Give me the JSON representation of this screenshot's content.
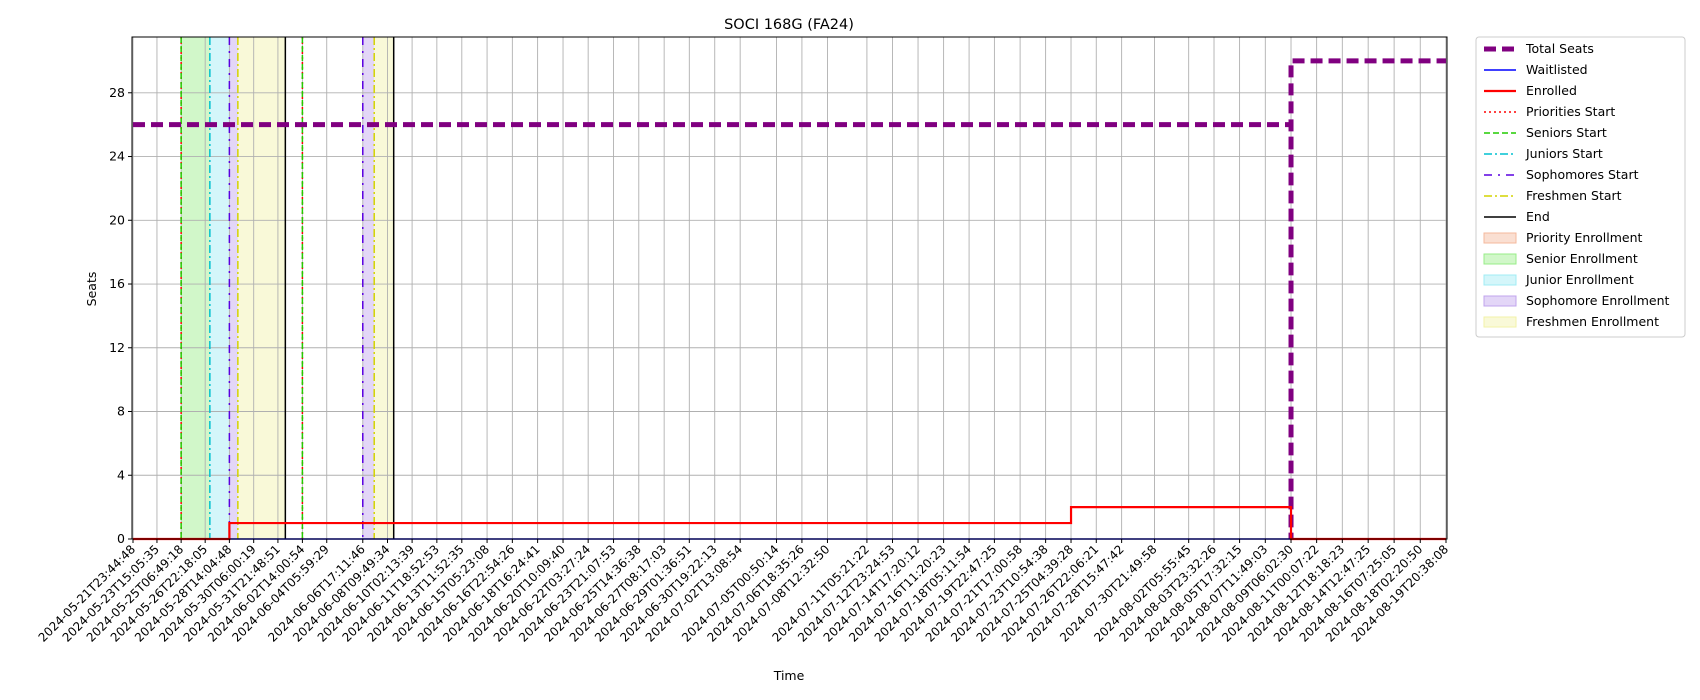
{
  "chart_data": {
    "type": "line",
    "title": "SOCI 168G (FA24)",
    "xlabel": "Time",
    "ylabel": "Seats",
    "ylim": [
      0,
      31.5
    ],
    "yticks": [
      0,
      4,
      8,
      12,
      16,
      20,
      24,
      28
    ],
    "grid": true,
    "legend_placement": "outside-right",
    "xticks": [
      "2024-05-21T23:44:48",
      "2024-05-23T15:05:35",
      "2024-05-25T06:49:18",
      "2024-05-26T22:18:05",
      "2024-05-28T14:04:48",
      "2024-05-30T06:00:19",
      "2024-05-31T21:48:51",
      "2024-06-02T14:00:54",
      "2024-06-04T05:59:29",
      "2024-06-06T17:11:46",
      "2024-06-08T09:49:34",
      "2024-06-10T02:13:39",
      "2024-06-11T18:52:53",
      "2024-06-13T11:52:35",
      "2024-06-15T05:23:08",
      "2024-06-16T22:54:26",
      "2024-06-18T16:24:41",
      "2024-06-20T10:09:40",
      "2024-06-22T03:27:24",
      "2024-06-23T21:07:53",
      "2024-06-25T14:36:38",
      "2024-06-27T08:17:03",
      "2024-06-29T01:36:51",
      "2024-06-30T19:22:13",
      "2024-07-02T13:08:54",
      "2024-07-05T00:50:14",
      "2024-07-06T18:35:26",
      "2024-07-08T12:32:50",
      "2024-07-11T05:21:22",
      "2024-07-12T23:24:53",
      "2024-07-14T17:20:12",
      "2024-07-16T11:20:23",
      "2024-07-18T05:11:54",
      "2024-07-19T22:47:25",
      "2024-07-21T17:00:58",
      "2024-07-23T10:54:38",
      "2024-07-25T04:39:28",
      "2024-07-26T22:06:21",
      "2024-07-28T15:47:42",
      "2024-07-30T21:49:58",
      "2024-08-02T05:55:45",
      "2024-08-03T23:32:26",
      "2024-08-05T17:32:15",
      "2024-08-07T11:49:03",
      "2024-08-09T06:02:30",
      "2024-08-11T00:07:22",
      "2024-08-12T18:18:23",
      "2024-08-14T12:47:25",
      "2024-08-16T07:25:05",
      "2024-08-18T02:20:50",
      "2024-08-19T20:38:08"
    ],
    "series": [
      {
        "name": "Total Seats",
        "color": "#800080",
        "style": "dashed-thick",
        "points": [
          [
            "2024-05-21T23:44:48",
            26
          ],
          [
            "2024-08-09T06:02:30",
            26
          ],
          [
            "2024-08-09T06:02:30",
            0
          ],
          [
            "2024-08-09T06:02:30",
            30
          ],
          [
            "2024-08-19T20:38:08",
            30
          ]
        ]
      },
      {
        "name": "Waitlisted",
        "color": "#0000ff",
        "style": "solid",
        "points": [
          [
            "2024-05-21T23:44:48",
            0
          ],
          [
            "2024-08-19T20:38:08",
            0
          ]
        ]
      },
      {
        "name": "Enrolled",
        "color": "#ff0000",
        "style": "solid-thick",
        "points": [
          [
            "2024-05-21T23:44:48",
            0
          ],
          [
            "2024-05-28T14:04:48",
            0
          ],
          [
            "2024-05-28T14:04:48",
            1
          ],
          [
            "2024-07-25T04:39:28",
            1
          ],
          [
            "2024-07-25T04:39:28",
            2
          ],
          [
            "2024-08-09T06:02:30",
            2
          ],
          [
            "2024-08-09T06:02:30",
            0
          ],
          [
            "2024-08-19T20:38:08",
            0
          ]
        ]
      }
    ],
    "markers": [
      {
        "name": "Priorities Start",
        "color": "#ff0000",
        "style": "dotted",
        "x": [
          "2024-05-25T06:49:18",
          "2024-06-02T14:00:54"
        ]
      },
      {
        "name": "Seniors Start",
        "color": "#22cc00",
        "style": "dashed",
        "x": [
          "2024-05-25T06:49:18",
          "2024-06-02T14:00:54"
        ]
      },
      {
        "name": "Juniors Start",
        "color": "#00c0d0",
        "style": "dashdot",
        "x": [
          "2024-05-27T06:00:00"
        ]
      },
      {
        "name": "Sophomores Start",
        "color": "#5a00e0",
        "style": "dashdot-loose",
        "x": [
          "2024-05-28T14:04:48",
          "2024-06-06T17:11:46"
        ]
      },
      {
        "name": "Freshmen Start",
        "color": "#d4d400",
        "style": "dashdot",
        "x": [
          "2024-05-29T04:00:00",
          "2024-06-07T12:00:00"
        ]
      },
      {
        "name": "End",
        "color": "#000000",
        "style": "solid",
        "x": [
          "2024-06-01T10:00:00",
          "2024-06-08T20:00:00"
        ]
      }
    ],
    "spans": [
      {
        "name": "Priority Enrollment",
        "color": "#f4b89c",
        "ranges": []
      },
      {
        "name": "Senior Enrollment",
        "color": "#98ee88",
        "ranges": [
          [
            "2024-05-25T06:49:18",
            "2024-05-27T06:00:00"
          ]
        ]
      },
      {
        "name": "Junior Enrollment",
        "color": "#a0ecf4",
        "ranges": [
          [
            "2024-05-27T06:00:00",
            "2024-05-28T14:04:48"
          ]
        ]
      },
      {
        "name": "Sophomore Enrollment",
        "color": "#c0a4ee",
        "ranges": [
          [
            "2024-05-28T14:04:48",
            "2024-05-29T04:00:00"
          ],
          [
            "2024-06-06T17:11:46",
            "2024-06-07T12:00:00"
          ]
        ]
      },
      {
        "name": "Freshmen Enrollment",
        "color": "#f2f2a8",
        "ranges": [
          [
            "2024-05-29T04:00:00",
            "2024-06-01T10:00:00"
          ],
          [
            "2024-06-07T12:00:00",
            "2024-06-08T20:00:00"
          ]
        ]
      }
    ]
  }
}
